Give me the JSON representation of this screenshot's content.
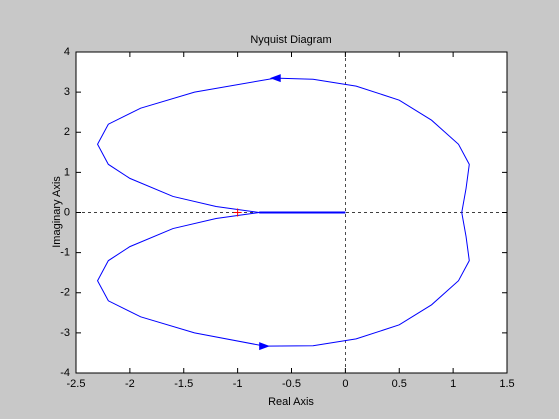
{
  "chart_data": {
    "type": "line",
    "title": "Nyquist Diagram",
    "x_label": "Real Axis",
    "y_label": "Imaginary Axis",
    "xlim": [
      -2.5,
      1.5
    ],
    "ylim": [
      -4,
      4
    ],
    "xticks": [
      -2.5,
      -2,
      -1.5,
      -1,
      -0.5,
      0,
      0.5,
      1,
      1.5
    ],
    "yticks": [
      -4,
      -3,
      -2,
      -1,
      0,
      1,
      2,
      3,
      4
    ],
    "zero_lines": true,
    "series": [
      {
        "color": "#0000ff",
        "x": [
          0,
          -0.8,
          -0.85,
          -1.2,
          -1.6,
          -2.0,
          -2.2,
          -2.3,
          -2.2,
          -1.9,
          -1.4,
          -0.75,
          -0.3,
          0.1,
          0.5,
          0.8,
          1.05,
          1.15,
          1.12,
          1.08,
          1.12,
          1.15,
          1.05,
          0.8,
          0.5,
          0.1,
          -0.3,
          -0.65,
          -1.4,
          -1.9,
          -2.2,
          -2.3,
          -2.2,
          -2.0,
          -1.6,
          -1.2,
          -0.85,
          -0.8
        ],
        "values": [
          0,
          0,
          -0.02,
          -0.15,
          -0.4,
          -0.85,
          -1.2,
          -1.7,
          -2.2,
          -2.6,
          -3.0,
          -3.33,
          -3.32,
          -3.15,
          -2.8,
          -2.3,
          -1.7,
          -1.2,
          -0.6,
          0,
          0.6,
          1.2,
          1.7,
          2.3,
          2.8,
          3.15,
          3.32,
          3.35,
          3.0,
          2.6,
          2.2,
          1.7,
          1.2,
          0.85,
          0.4,
          0.15,
          0.02,
          0
        ]
      }
    ],
    "markers": [
      {
        "x": -1,
        "y": 0,
        "color": "#ff0000"
      }
    ]
  }
}
